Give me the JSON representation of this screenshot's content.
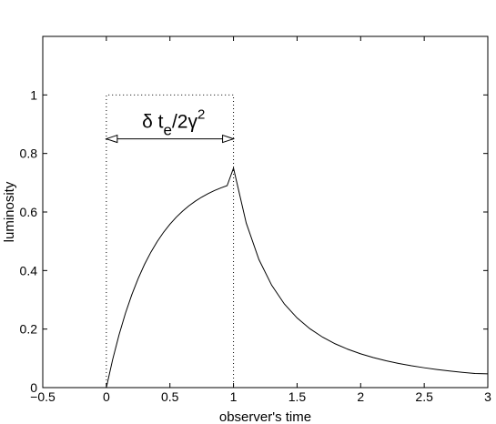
{
  "chart_data": {
    "type": "line",
    "xlabel": "observer's time",
    "ylabel": "luminosity",
    "xlim": [
      -0.5,
      3
    ],
    "ylim": [
      0,
      1.2
    ],
    "xticks": [
      -0.5,
      0,
      0.5,
      1,
      1.5,
      2,
      2.5,
      3
    ],
    "xtick_labels": [
      "−0.5",
      "0",
      "0.5",
      "1",
      "1.5",
      "2",
      "2.5",
      "3"
    ],
    "yticks": [
      0,
      0.2,
      0.4,
      0.6,
      0.8,
      1
    ],
    "ytick_labels": [
      "0",
      "0.2",
      "0.4",
      "0.6",
      "0.8",
      "1"
    ],
    "grid": false,
    "series": [
      {
        "style": "solid",
        "x": [
          0,
          0.05,
          0.1,
          0.15,
          0.2,
          0.25,
          0.3,
          0.35,
          0.4,
          0.45,
          0.5,
          0.55,
          0.6,
          0.65,
          0.7,
          0.75,
          0.8,
          0.85,
          0.9,
          0.95,
          1.0,
          1.1,
          1.2,
          1.3,
          1.4,
          1.5,
          1.6,
          1.7,
          1.8,
          1.9,
          2.0,
          2.1,
          2.2,
          2.3,
          2.4,
          2.5,
          2.6,
          2.7,
          2.8,
          2.9,
          3.0
        ],
        "y": [
          0,
          0.0966,
          0.1806,
          0.2537,
          0.3173,
          0.3726,
          0.4208,
          0.4626,
          0.4991,
          0.5308,
          0.5583,
          0.5823,
          0.6032,
          0.6213,
          0.6371,
          0.6509,
          0.6628,
          0.6732,
          0.6822,
          0.6901,
          0.75,
          0.5625,
          0.4375,
          0.35,
          0.2857,
          0.2381,
          0.2014,
          0.1726,
          0.1496,
          0.1309,
          0.1154,
          0.1026,
          0.0917,
          0.0825,
          0.0746,
          0.0678,
          0.0619,
          0.0567,
          0.0521,
          0.0481,
          0.0469
        ]
      },
      {
        "style": "dotted",
        "x": [
          0,
          0,
          1,
          1
        ],
        "y": [
          0,
          1,
          1,
          0
        ]
      }
    ],
    "annotations": [
      {
        "text_parts": [
          "δ t",
          "e",
          "/2γ",
          "2"
        ],
        "type": "double-arrow",
        "x_from": 0,
        "x_to": 1,
        "y": 0.85
      }
    ]
  }
}
